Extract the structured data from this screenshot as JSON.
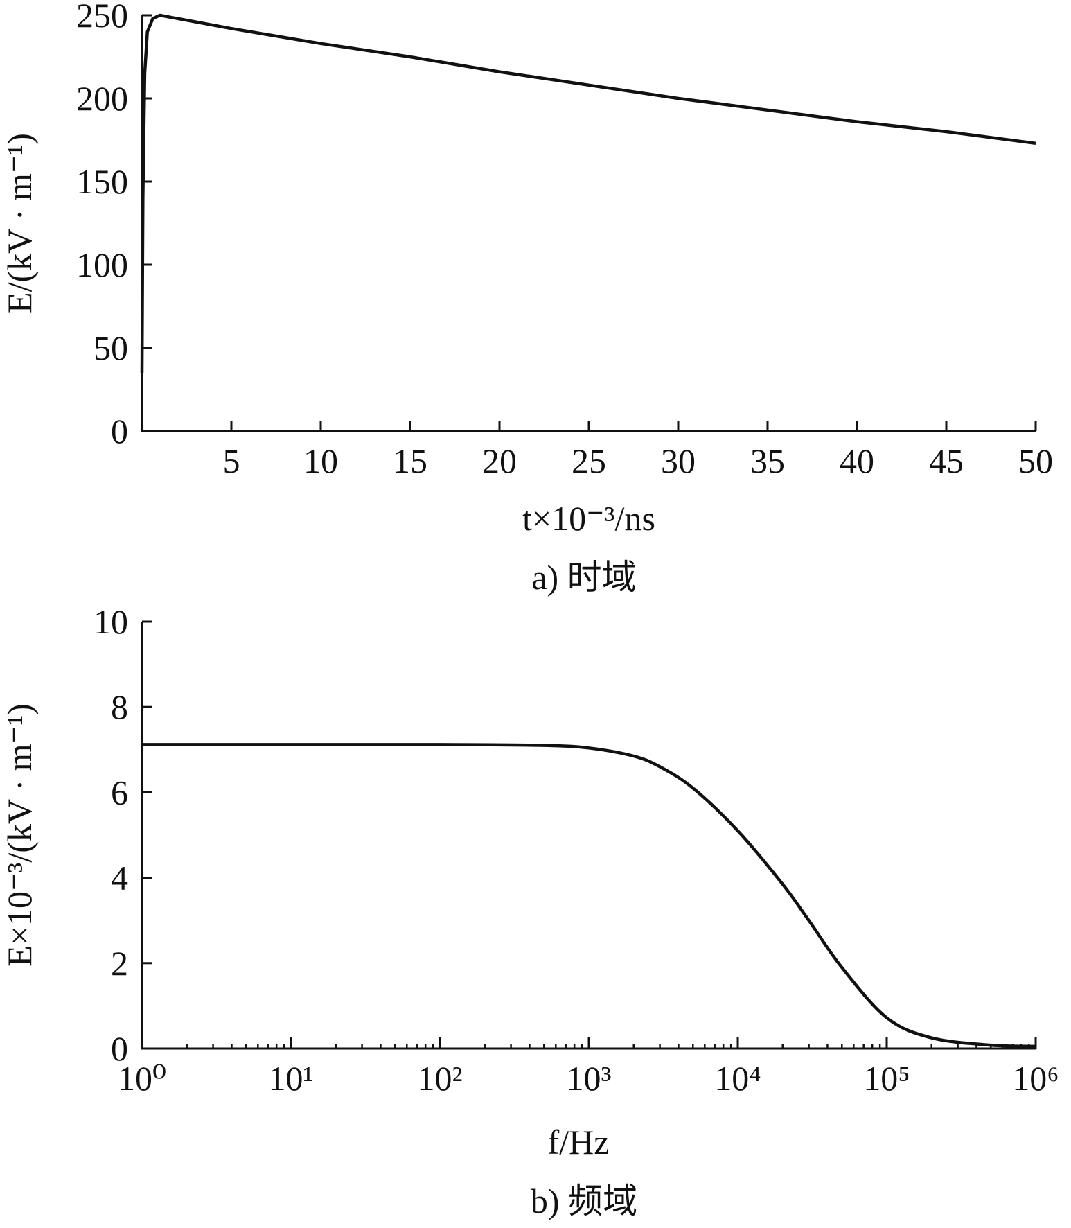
{
  "chart_data": [
    {
      "type": "line",
      "caption": "a) 时域",
      "xlabel": "t×10⁻³/ns",
      "ylabel": "E/(kV · m⁻¹)",
      "xlim": [
        0,
        50
      ],
      "ylim": [
        0,
        250
      ],
      "xticks": [
        "5",
        "10",
        "15",
        "20",
        "25",
        "30",
        "35",
        "40",
        "45",
        "50"
      ],
      "yticks": [
        "0",
        "50",
        "100",
        "150",
        "200",
        "250"
      ],
      "series": [
        {
          "x": [
            0,
            0.05,
            0.15,
            0.3,
            0.6,
            1.0,
            5,
            10,
            15,
            20,
            25,
            30,
            35,
            40,
            45,
            50
          ],
          "y": [
            35,
            140,
            215,
            240,
            248,
            250,
            242,
            233,
            225,
            216,
            208,
            200,
            193,
            186,
            180,
            173
          ]
        }
      ]
    },
    {
      "type": "line",
      "caption": "b) 频域",
      "xlabel": "f/Hz",
      "ylabel": "E×10⁻³/(kV · m⁻¹)",
      "xscale": "log",
      "xlim": [
        1,
        1000000
      ],
      "ylim": [
        0,
        10
      ],
      "xticks": [
        "10⁰",
        "10¹",
        "10²",
        "10³",
        "10⁴",
        "10⁵",
        "10⁶"
      ],
      "yticks": [
        "0",
        "2",
        "4",
        "6",
        "8",
        "10"
      ],
      "series": [
        {
          "x": [
            1,
            10,
            100,
            500,
            1000,
            2000,
            3000,
            5000,
            10000,
            20000,
            30000,
            50000,
            100000,
            200000,
            500000,
            1000000
          ],
          "y": [
            7.12,
            7.12,
            7.12,
            7.1,
            7.04,
            6.85,
            6.6,
            6.1,
            5.1,
            3.85,
            3.0,
            1.9,
            0.72,
            0.25,
            0.08,
            0.05
          ]
        }
      ]
    }
  ]
}
